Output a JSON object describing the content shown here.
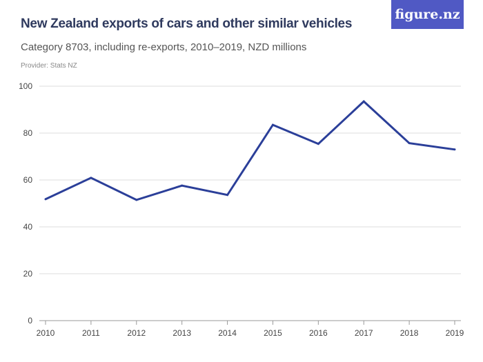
{
  "header": {
    "title": "New Zealand exports of cars and other similar vehicles",
    "subtitle": "Category 8703, including re-exports, 2010–2019, NZD millions",
    "provider": "Provider: Stats NZ",
    "logo": "figure.nz"
  },
  "chart_data": {
    "type": "line",
    "title": "New Zealand exports of cars and other similar vehicles",
    "subtitle": "Category 8703, including re-exports, 2010–2019, NZD millions",
    "x": [
      "2010",
      "2011",
      "2012",
      "2013",
      "2014",
      "2015",
      "2016",
      "2017",
      "2018",
      "2019"
    ],
    "series": [
      {
        "values": [
          51.8,
          60.9,
          51.5,
          57.6,
          53.6,
          83.5,
          75.4,
          93.5,
          75.7,
          73.0
        ],
        "color": "#2b3f99"
      }
    ],
    "yticks": [
      0,
      20,
      40,
      60,
      80,
      100
    ],
    "ylim": [
      0,
      100
    ],
    "grid": true
  }
}
